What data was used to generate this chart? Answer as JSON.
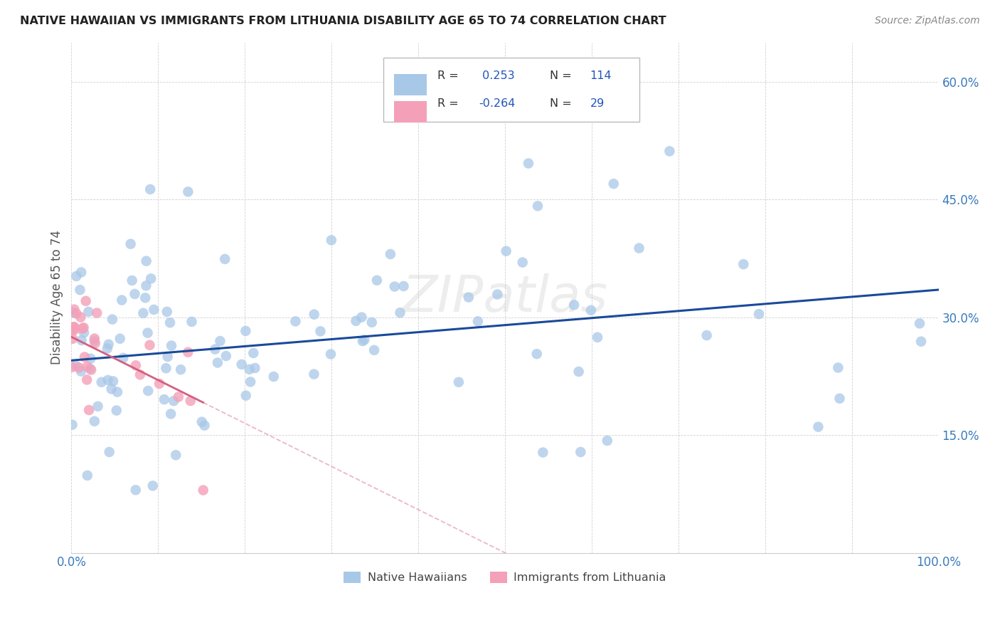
{
  "title": "NATIVE HAWAIIAN VS IMMIGRANTS FROM LITHUANIA DISABILITY AGE 65 TO 74 CORRELATION CHART",
  "source": "Source: ZipAtlas.com",
  "ylabel": "Disability Age 65 to 74",
  "xlim": [
    0,
    1.0
  ],
  "ylim": [
    0,
    0.65
  ],
  "R_blue": 0.253,
  "N_blue": 114,
  "R_pink": -0.264,
  "N_pink": 29,
  "blue_color": "#a8c8e8",
  "pink_color": "#f4a0b8",
  "blue_line_color": "#1a4a9a",
  "pink_line_color": "#d46080",
  "legend_label_blue": "Native Hawaiians",
  "legend_label_pink": "Immigrants from Lithuania",
  "blue_intercept": 0.245,
  "blue_slope": 0.09,
  "pink_intercept": 0.275,
  "pink_slope": -0.55
}
